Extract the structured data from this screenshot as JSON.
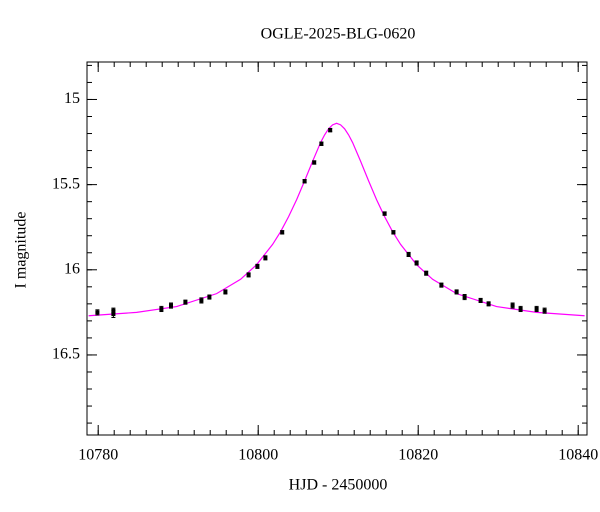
{
  "chart_data": {
    "type": "scatter",
    "title": "OGLE-2025-BLG-0620",
    "xlabel": "HJD - 2450000",
    "ylabel": "I magnitude",
    "xlim": [
      10778.6,
      10841.1
    ],
    "ylim": [
      16.97,
      14.78
    ],
    "xticks": [
      10780,
      10800,
      10820,
      10840
    ],
    "yticks": [
      15,
      15.5,
      16,
      16.5
    ],
    "series": [
      {
        "type": "scatter",
        "color": "#000000",
        "x": [
          10779.9,
          10781.9,
          10781.9,
          10787.9,
          10789.1,
          10790.9,
          10792.9,
          10793.9,
          10795.9,
          10798.8,
          10799.9,
          10800.9,
          10803.0,
          10805.8,
          10807.0,
          10807.9,
          10809.0,
          10815.8,
          10816.9,
          10818.8,
          10819.8,
          10821.0,
          10822.9,
          10824.8,
          10825.8,
          10827.8,
          10828.8,
          10831.8,
          10832.8,
          10834.8,
          10835.8
        ],
        "values": [
          16.25,
          16.26,
          16.24,
          16.23,
          16.21,
          16.19,
          16.18,
          16.16,
          16.13,
          16.03,
          15.98,
          15.93,
          15.78,
          15.48,
          15.37,
          15.26,
          15.18,
          15.67,
          15.78,
          15.91,
          15.96,
          16.02,
          16.09,
          16.13,
          16.16,
          16.18,
          16.2,
          16.21,
          16.23,
          16.23,
          16.24
        ],
        "errors": [
          0.015,
          0.02,
          0.015,
          0.015,
          0.015,
          0.012,
          0.015,
          0.012,
          0.012,
          0.012,
          0.012,
          0.012,
          0.01,
          0.01,
          0.01,
          0.01,
          0.01,
          0.01,
          0.01,
          0.012,
          0.012,
          0.012,
          0.012,
          0.012,
          0.015,
          0.012,
          0.012,
          0.015,
          0.015,
          0.015,
          0.015
        ]
      },
      {
        "type": "line",
        "color": "#ff00ff",
        "x": [
          10778.8,
          10784.8,
          10789.8,
          10794.8,
          10797.8,
          10799.8,
          10801.8,
          10802.8,
          10803.8,
          10804.8,
          10805.8,
          10806.8,
          10807.8,
          10808.3,
          10808.8,
          10809.3,
          10809.8,
          10810.3,
          10810.8,
          10811.3,
          10811.8,
          10812.8,
          10813.8,
          10814.8,
          10815.8,
          10816.8,
          10817.8,
          10819.8,
          10821.8,
          10824.8,
          10829.8,
          10834.8,
          10840.8
        ],
        "values": [
          16.27,
          16.25,
          16.216,
          16.14,
          16.056,
          15.97,
          15.851,
          15.776,
          15.688,
          15.589,
          15.478,
          15.363,
          15.253,
          15.208,
          15.172,
          15.149,
          15.14,
          15.149,
          15.172,
          15.208,
          15.253,
          15.363,
          15.478,
          15.589,
          15.688,
          15.776,
          15.851,
          15.97,
          16.056,
          16.14,
          16.216,
          16.25,
          16.27
        ]
      }
    ]
  }
}
